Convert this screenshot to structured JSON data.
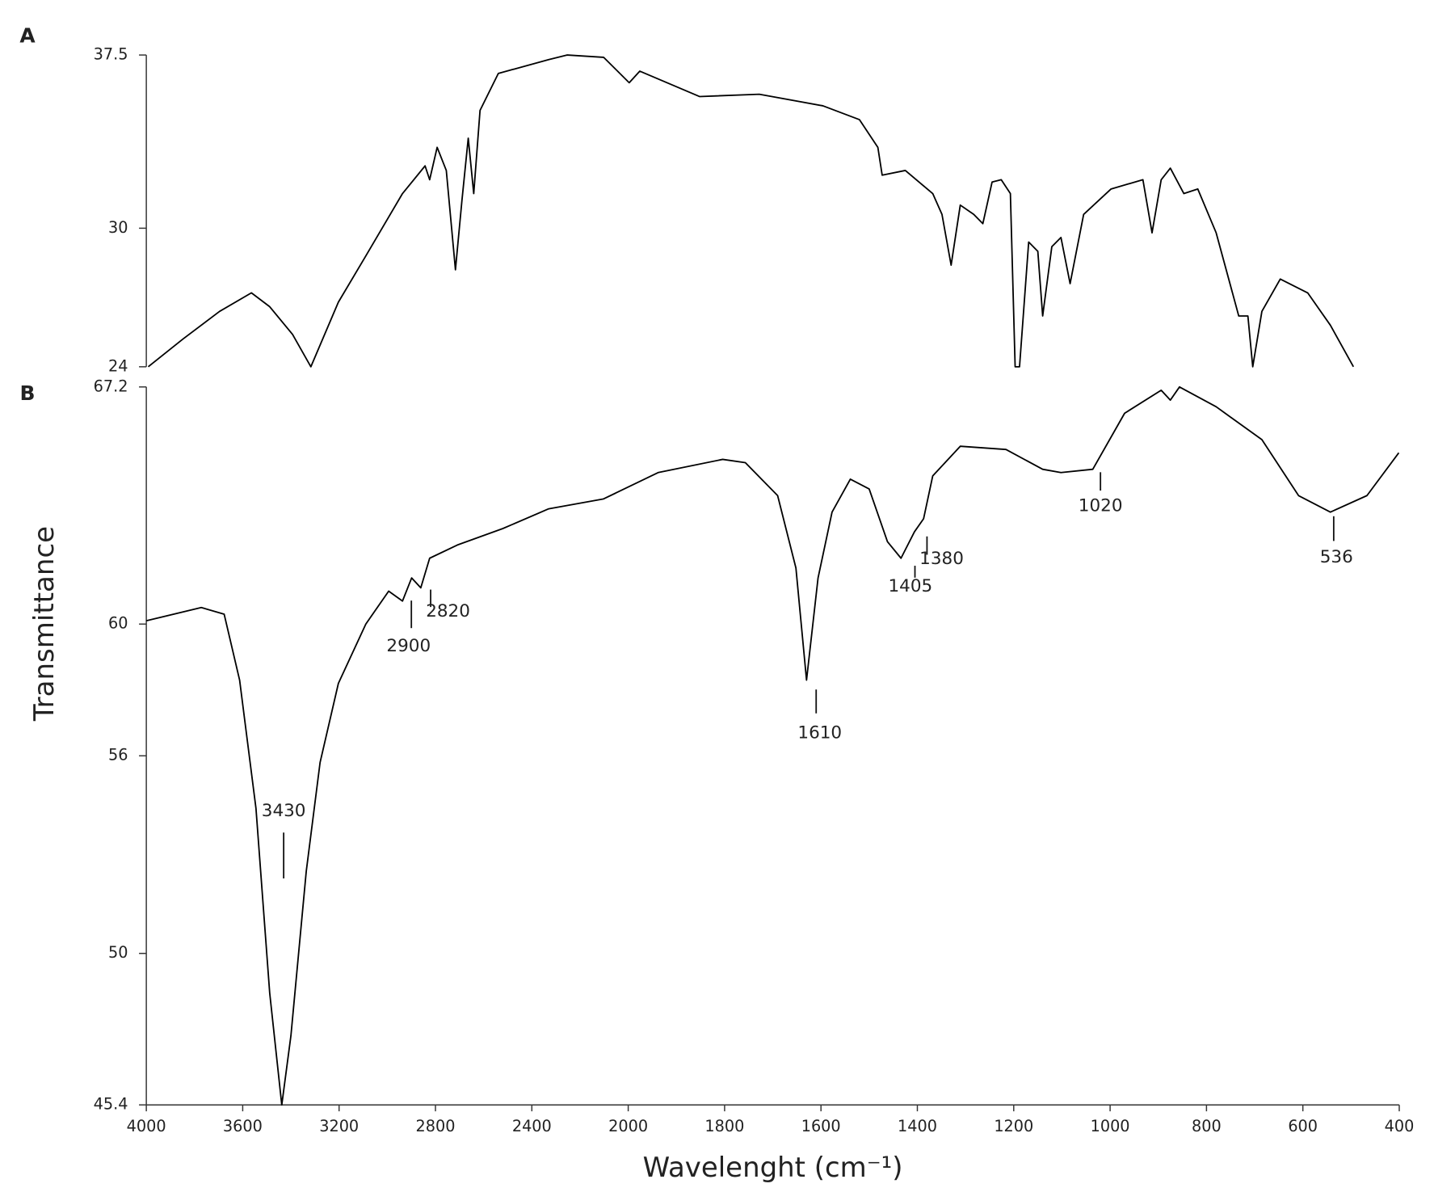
{
  "chart_data": [
    {
      "type": "line",
      "panel_label": "A",
      "color": "#000000",
      "ylim": [
        24,
        37.5
      ],
      "yticks": [
        24,
        30,
        37.5
      ],
      "x": [
        3992,
        3848,
        3696,
        3564,
        3488,
        3393,
        3317,
        3203,
        3089,
        2937,
        2843,
        2824,
        2793,
        2755,
        2717,
        2690,
        2664,
        2641,
        2615,
        2539,
        2330,
        2254,
        2102,
        1998,
        1976,
        1852,
        1728,
        1596,
        1520,
        1482,
        1473,
        1425,
        1368,
        1349,
        1330,
        1311,
        1283,
        1264,
        1245,
        1226,
        1207,
        1197,
        1188,
        1169,
        1150,
        1140,
        1121,
        1102,
        1083,
        1055,
        998,
        932,
        913,
        894,
        875,
        847,
        818,
        780,
        733,
        714,
        704,
        685,
        647,
        590,
        543,
        495
      ],
      "values": [
        24.0,
        25.2,
        26.4,
        27.2,
        26.6,
        25.4,
        24.0,
        26.8,
        28.8,
        31.5,
        32.7,
        32.1,
        33.5,
        32.5,
        28.2,
        31.2,
        33.9,
        31.5,
        35.1,
        36.7,
        37.3,
        37.5,
        37.4,
        36.3,
        36.8,
        35.7,
        35.8,
        35.3,
        34.7,
        33.5,
        32.3,
        32.5,
        31.5,
        30.6,
        28.4,
        31.0,
        30.6,
        30.2,
        32.0,
        32.1,
        31.5,
        24.0,
        24.0,
        29.4,
        29.0,
        26.2,
        29.2,
        29.6,
        27.6,
        30.6,
        31.7,
        32.1,
        29.8,
        32.1,
        32.6,
        31.5,
        31.7,
        29.8,
        26.2,
        26.2,
        24.0,
        26.4,
        27.8,
        27.2,
        25.8,
        24.0
      ]
    },
    {
      "type": "line",
      "panel_label": "B",
      "color": "#000000",
      "xlabel": "Wavelenght (cm⁻¹)",
      "ylabel": "Transmittance",
      "xlim": [
        4000,
        400
      ],
      "xticks": [
        4000,
        3600,
        3200,
        2800,
        2400,
        2000,
        1800,
        1600,
        1400,
        1200,
        1000,
        800,
        600,
        400
      ],
      "xscale": "tick-spaced",
      "ylim": [
        45.4,
        67.2
      ],
      "yticks": [
        45.4,
        50,
        56,
        60,
        67.2
      ],
      "x": [
        4000,
        3772,
        3677,
        3613,
        3545,
        3488,
        3438,
        3400,
        3336,
        3279,
        3203,
        3089,
        2994,
        2937,
        2899,
        2861,
        2824,
        2709,
        2520,
        2330,
        2102,
        1938,
        1804,
        1757,
        1690,
        1652,
        1630,
        1606,
        1577,
        1539,
        1500,
        1462,
        1434,
        1406,
        1387,
        1368,
        1311,
        1216,
        1140,
        1102,
        1036,
        970,
        894,
        875,
        856,
        780,
        685,
        609,
        543,
        467,
        401
      ],
      "values": [
        60.1,
        60.5,
        60.3,
        58.3,
        54.4,
        48.8,
        45.4,
        47.5,
        52.5,
        55.8,
        58.2,
        60.0,
        61.0,
        60.7,
        61.4,
        61.1,
        62.0,
        62.4,
        62.9,
        63.5,
        63.8,
        64.6,
        65.0,
        64.9,
        63.9,
        61.7,
        58.3,
        61.4,
        63.4,
        64.4,
        64.1,
        62.5,
        62.0,
        62.8,
        63.2,
        64.5,
        65.4,
        65.3,
        64.7,
        64.6,
        64.7,
        66.4,
        67.1,
        66.8,
        67.2,
        66.6,
        65.6,
        63.9,
        63.4,
        63.9,
        65.2
      ],
      "annotations": [
        3430,
        2900,
        2820,
        1610,
        1405,
        1380,
        1020,
        536
      ]
    }
  ]
}
